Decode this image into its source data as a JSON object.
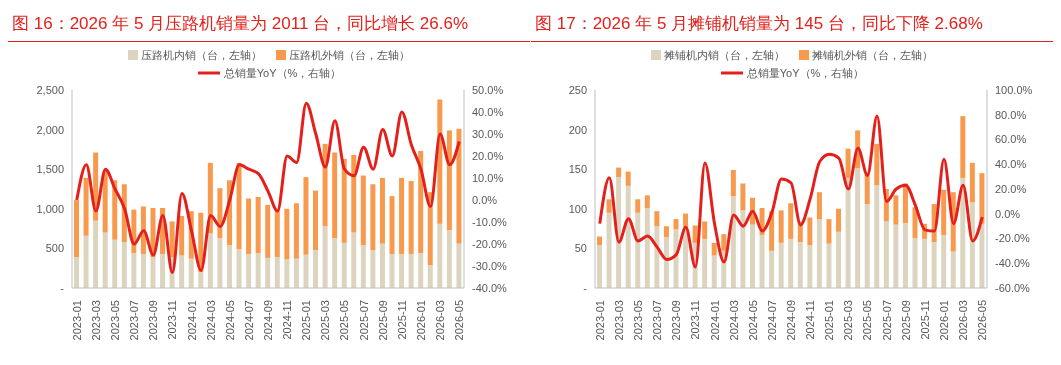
{
  "chart_data": [
    {
      "type": "bar",
      "title": "图 16：2026 年 5 月压路机销量为 2011 台，同比增长 26.6%",
      "stacked": true,
      "legend": "top",
      "grid": false,
      "marker": "none",
      "line_style": "solid",
      "categories": [
        "2023-01",
        null,
        "2023-03",
        null,
        "2023-05",
        null,
        "2023-07",
        null,
        "2023-09",
        null,
        "2023-11",
        null,
        "2024-01",
        null,
        "2024-03",
        null,
        "2024-05",
        null,
        "2024-07",
        null,
        "2024-09",
        null,
        "2024-11",
        null,
        "2025-01",
        null,
        "2025-03",
        null,
        "2025-05",
        null,
        "2025-07",
        null,
        "2025-09",
        null,
        "2025-11",
        null,
        "2026-01",
        null,
        "2026-03",
        null,
        "2026-05"
      ],
      "series": [
        {
          "name": "压路机内销（台，左轴）",
          "color": "#ddd4bf",
          "values": [
            390,
            660,
            850,
            700,
            610,
            580,
            440,
            430,
            390,
            430,
            390,
            410,
            370,
            200,
            690,
            630,
            540,
            490,
            430,
            440,
            380,
            390,
            360,
            370,
            420,
            480,
            780,
            630,
            570,
            700,
            540,
            480,
            560,
            430,
            430,
            430,
            440,
            290,
            810,
            730,
            560
          ]
        },
        {
          "name": "压路机外销（台，左轴）",
          "color": "#f79a4e",
          "values": [
            720,
            730,
            860,
            780,
            750,
            730,
            550,
            600,
            620,
            580,
            450,
            500,
            600,
            750,
            890,
            630,
            820,
            1090,
            700,
            710,
            670,
            600,
            640,
            700,
            980,
            750,
            1040,
            1080,
            1060,
            980,
            880,
            830,
            830,
            730,
            960,
            920,
            1290,
            920,
            1570,
            1260,
            1450
          ]
        },
        {
          "name": "总销量YoY（%，右轴）",
          "type": "line",
          "axis": "y2",
          "color": "#e3201b",
          "values": [
            0,
            16,
            -5,
            14,
            5,
            -4,
            -20,
            -14,
            -25,
            -7,
            -33,
            3,
            -14,
            -32,
            -7,
            -12,
            0,
            16,
            14,
            12,
            4,
            -5,
            20,
            17,
            44,
            30,
            15,
            36,
            14,
            11,
            24,
            14,
            32,
            20,
            40,
            25,
            14,
            -3,
            30,
            16,
            26.6
          ]
        }
      ],
      "ylim": [
        0,
        2500
      ],
      "yticks": [
        {
          "value": 0,
          "label": "-"
        },
        {
          "value": 500,
          "label": "500"
        },
        {
          "value": 1000,
          "label": "1,000"
        },
        {
          "value": 1500,
          "label": "1,500"
        },
        {
          "value": 2000,
          "label": "2,000"
        },
        {
          "value": 2500,
          "label": "2,500"
        }
      ],
      "y2lim": [
        -40,
        50
      ],
      "y2ticks": [
        {
          "value": -40,
          "label": "-40.0%"
        },
        {
          "value": -30,
          "label": "-30.0%"
        },
        {
          "value": -20,
          "label": "-20.0%"
        },
        {
          "value": -10,
          "label": "-10.0%"
        },
        {
          "value": 0,
          "label": "0.0%"
        },
        {
          "value": 10,
          "label": "10.0%"
        },
        {
          "value": 20,
          "label": "20.0%"
        },
        {
          "value": 30,
          "label": "30.0%"
        },
        {
          "value": 40,
          "label": "40.0%"
        },
        {
          "value": 50,
          "label": "50.0%"
        }
      ]
    },
    {
      "type": "bar",
      "title": "图 17：2026 年 5 月摊铺机销量为 145 台，同比下降 2.68%",
      "stacked": true,
      "legend": "top",
      "grid": false,
      "marker": "none",
      "line_style": "solid",
      "categories": [
        "2023-01",
        null,
        "2023-03",
        null,
        "2023-05",
        null,
        "2023-07",
        null,
        "2023-09",
        null,
        "2023-11",
        null,
        "2024-01",
        null,
        "2024-03",
        null,
        "2024-05",
        null,
        "2024-07",
        null,
        "2024-09",
        null,
        "2024-11",
        null,
        "2025-01",
        null,
        "2025-03",
        null,
        "2025-05",
        null,
        "2025-07",
        null,
        "2025-09",
        null,
        "2025-11",
        null,
        "2026-01",
        null,
        "2026-03",
        null,
        "2026-05"
      ],
      "series": [
        {
          "name": "摊铺机内销（台，左轴）",
          "color": "#ddd4bf",
          "values": [
            54,
            95,
            140,
            129,
            95,
            101,
            78,
            64,
            74,
            77,
            57,
            62,
            41,
            47,
            116,
            98,
            80,
            67,
            47,
            57,
            62,
            58,
            54,
            87,
            56,
            71,
            139,
            151,
            106,
            130,
            84,
            80,
            82,
            63,
            62,
            58,
            67,
            46,
            139,
            108,
            81
          ]
        },
        {
          "name": "摊铺机外销（台，左轴）",
          "color": "#f79a4e",
          "values": [
            11,
            17,
            12,
            18,
            17,
            16,
            19,
            14,
            13,
            17,
            22,
            22,
            16,
            21,
            33,
            34,
            34,
            34,
            50,
            41,
            45,
            26,
            35,
            34,
            31,
            29,
            37,
            48,
            40,
            52,
            41,
            37,
            50,
            39,
            19,
            48,
            57,
            75,
            78,
            50,
            64
          ]
        },
        {
          "name": "总销量YoY（%，右轴）",
          "type": "line",
          "axis": "y2",
          "color": "#e3201b",
          "values": [
            -8,
            29,
            -23,
            -4,
            -22,
            -18,
            -27,
            -37,
            -33,
            -11,
            -43,
            41,
            -8,
            -39,
            -1,
            -10,
            2,
            -14,
            1,
            28,
            25,
            -9,
            12,
            42,
            48,
            45,
            20,
            53,
            31,
            79,
            10,
            20,
            23,
            7,
            -13,
            -14,
            44,
            -8,
            23,
            -22,
            -2.68
          ]
        }
      ],
      "ylim": [
        0,
        250
      ],
      "yticks": [
        {
          "value": 0,
          "label": "-"
        },
        50,
        100,
        150,
        200,
        250
      ],
      "y2lim": [
        -60,
        100
      ],
      "y2ticks": [
        {
          "value": -60,
          "label": "-60.0%"
        },
        {
          "value": -40,
          "label": "-40.0%"
        },
        {
          "value": -20,
          "label": "-20.0%"
        },
        {
          "value": 0,
          "label": "0.0%"
        },
        {
          "value": 20,
          "label": "20.0%"
        },
        {
          "value": 40,
          "label": "40.0%"
        },
        {
          "value": 60,
          "label": "60.0%"
        },
        {
          "value": 80,
          "label": "80.0%"
        },
        {
          "value": 100,
          "label": "100.0%"
        }
      ]
    }
  ]
}
